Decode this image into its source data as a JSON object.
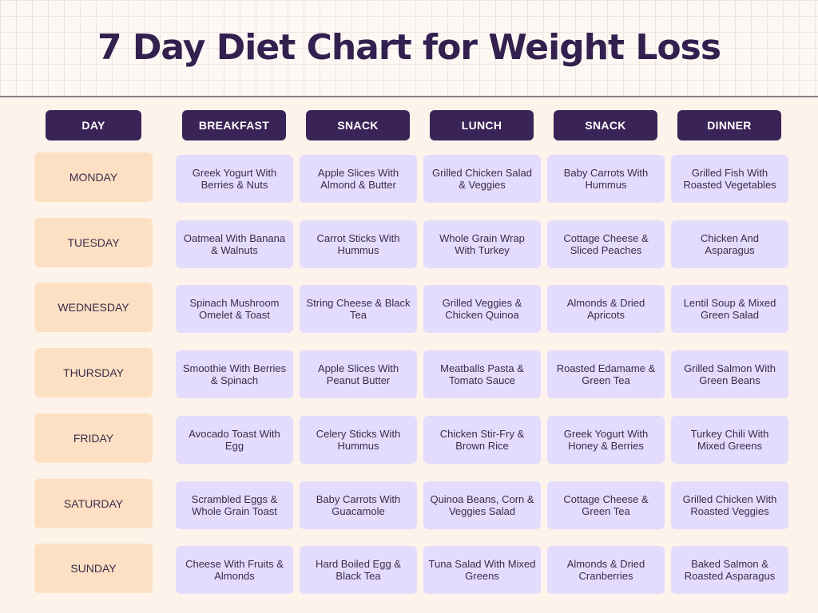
{
  "title": "7 Day Diet Chart for Weight Loss",
  "headers": {
    "day": "DAY",
    "meals": [
      "BREAKFAST",
      "SNACK",
      "LUNCH",
      "SNACK",
      "DINNER"
    ]
  },
  "rows": [
    {
      "day": "MONDAY",
      "meals": [
        "Greek Yogurt With Berries & Nuts",
        "Apple Slices With Almond & Butter",
        "Grilled Chicken Salad & Veggies",
        "Baby Carrots With Hummus",
        "Grilled Fish With Roasted Vegetables"
      ]
    },
    {
      "day": "TUESDAY",
      "meals": [
        "Oatmeal With Banana & Walnuts",
        "Carrot Sticks With Hummus",
        "Whole Grain Wrap With Turkey",
        "Cottage Cheese & Sliced Peaches",
        "Chicken And Asparagus"
      ]
    },
    {
      "day": "WEDNESDAY",
      "meals": [
        "Spinach Mushroom Omelet & Toast",
        "String Cheese & Black Tea",
        "Grilled Veggies & Chicken Quinoa",
        "Almonds & Dried Apricots",
        "Lentil Soup & Mixed Green Salad"
      ]
    },
    {
      "day": "THURSDAY",
      "meals": [
        "Smoothie With Berries & Spinach",
        "Apple Slices With Peanut Butter",
        "Meatballs Pasta & Tomato Sauce",
        "Roasted Edamame & Green Tea",
        "Grilled Salmon With Green Beans"
      ]
    },
    {
      "day": "FRIDAY",
      "meals": [
        "Avocado Toast With Egg",
        "Celery Sticks With Hummus",
        "Chicken Stir-Fry & Brown Rice",
        "Greek Yogurt With Honey & Berries",
        "Turkey Chili With Mixed Greens"
      ]
    },
    {
      "day": "SATURDAY",
      "meals": [
        "Scrambled Eggs & Whole Grain Toast",
        "Baby Carrots With Guacamole",
        "Quinoa Beans, Corn & Veggies Salad",
        "Cottage Cheese & Green Tea",
        "Grilled Chicken With Roasted Veggies"
      ]
    },
    {
      "day": "SUNDAY",
      "meals": [
        "Cheese With Fruits & Almonds",
        "Hard Boiled Egg & Black Tea",
        "Tuna Salad With Mixed Greens",
        "Almonds & Dried Cranberries",
        "Baked Salmon & Roasted Asparagus"
      ]
    }
  ]
}
